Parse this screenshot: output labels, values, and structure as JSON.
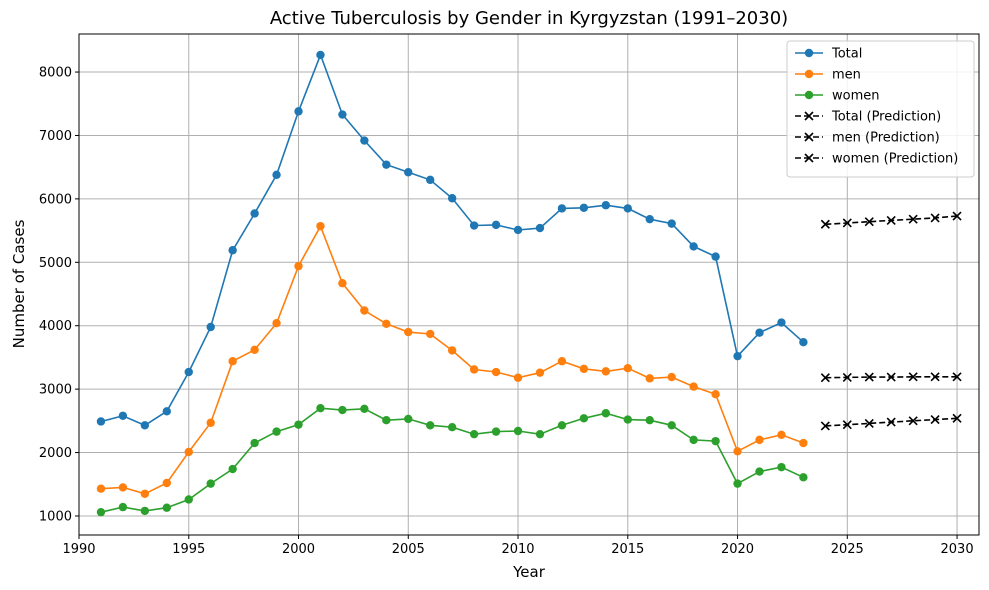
{
  "chart_data": {
    "type": "line",
    "title": "Active Tuberculosis by Gender in Kyrgyzstan (1991–2030)",
    "xlabel": "Year",
    "ylabel": "Number of Cases",
    "xlim": [
      1990,
      2031
    ],
    "ylim": [
      700,
      8600
    ],
    "x_ticks": [
      1990,
      1995,
      2000,
      2005,
      2010,
      2015,
      2020,
      2025,
      2030
    ],
    "y_ticks": [
      1000,
      2000,
      3000,
      4000,
      5000,
      6000,
      7000,
      8000
    ],
    "grid": true,
    "legend_position": "top-right",
    "series": [
      {
        "name": "Total",
        "color": "#1f77b4",
        "marker": "circle",
        "style": "solid",
        "x": [
          1991,
          1992,
          1993,
          1994,
          1995,
          1996,
          1997,
          1998,
          1999,
          2000,
          2001,
          2002,
          2003,
          2004,
          2005,
          2006,
          2007,
          2008,
          2009,
          2010,
          2011,
          2012,
          2013,
          2014,
          2015,
          2016,
          2017,
          2018,
          2019,
          2020,
          2021,
          2022,
          2023
        ],
        "y": [
          2490,
          2580,
          2430,
          2650,
          3270,
          3980,
          5190,
          5770,
          6380,
          7380,
          8270,
          7330,
          6920,
          6540,
          6420,
          6300,
          6010,
          5580,
          5590,
          5510,
          5540,
          5850,
          5860,
          5900,
          5850,
          5680,
          5610,
          5250,
          5090,
          3520,
          3890,
          4050,
          3740
        ]
      },
      {
        "name": "men",
        "color": "#ff7f0e",
        "marker": "circle",
        "style": "solid",
        "x": [
          1991,
          1992,
          1993,
          1994,
          1995,
          1996,
          1997,
          1998,
          1999,
          2000,
          2001,
          2002,
          2003,
          2004,
          2005,
          2006,
          2007,
          2008,
          2009,
          2010,
          2011,
          2012,
          2013,
          2014,
          2015,
          2016,
          2017,
          2018,
          2019,
          2020,
          2021,
          2022,
          2023
        ],
        "y": [
          1430,
          1450,
          1350,
          1520,
          2010,
          2470,
          3440,
          3620,
          4040,
          4940,
          5570,
          4670,
          4240,
          4030,
          3900,
          3870,
          3610,
          3310,
          3270,
          3180,
          3260,
          3440,
          3320,
          3280,
          3330,
          3170,
          3190,
          3040,
          2920,
          2020,
          2200,
          2280,
          2150
        ]
      },
      {
        "name": "women",
        "color": "#2ca02c",
        "marker": "circle",
        "style": "solid",
        "x": [
          1991,
          1992,
          1993,
          1994,
          1995,
          1996,
          1997,
          1998,
          1999,
          2000,
          2001,
          2002,
          2003,
          2004,
          2005,
          2006,
          2007,
          2008,
          2009,
          2010,
          2011,
          2012,
          2013,
          2014,
          2015,
          2016,
          2017,
          2018,
          2019,
          2020,
          2021,
          2022,
          2023
        ],
        "y": [
          1060,
          1140,
          1080,
          1130,
          1260,
          1510,
          1740,
          2150,
          2330,
          2440,
          2700,
          2670,
          2690,
          2510,
          2530,
          2430,
          2400,
          2290,
          2330,
          2340,
          2290,
          2430,
          2540,
          2620,
          2520,
          2510,
          2430,
          2200,
          2180,
          1510,
          1700,
          1770,
          1610
        ]
      },
      {
        "name": "Total (Prediction)",
        "color": "#000000",
        "marker": "x",
        "style": "dashed",
        "x": [
          2024,
          2025,
          2026,
          2027,
          2028,
          2029,
          2030
        ],
        "y": [
          5600,
          5620,
          5640,
          5660,
          5680,
          5700,
          5730
        ]
      },
      {
        "name": "men (Prediction)",
        "color": "#000000",
        "marker": "x",
        "style": "dashed",
        "x": [
          2024,
          2025,
          2026,
          2027,
          2028,
          2029,
          2030
        ],
        "y": [
          3180,
          3185,
          3190,
          3190,
          3195,
          3195,
          3195
        ]
      },
      {
        "name": "women (Prediction)",
        "color": "#000000",
        "marker": "x",
        "style": "dashed",
        "x": [
          2024,
          2025,
          2026,
          2027,
          2028,
          2029,
          2030
        ],
        "y": [
          2420,
          2440,
          2460,
          2480,
          2500,
          2520,
          2540
        ]
      }
    ]
  }
}
